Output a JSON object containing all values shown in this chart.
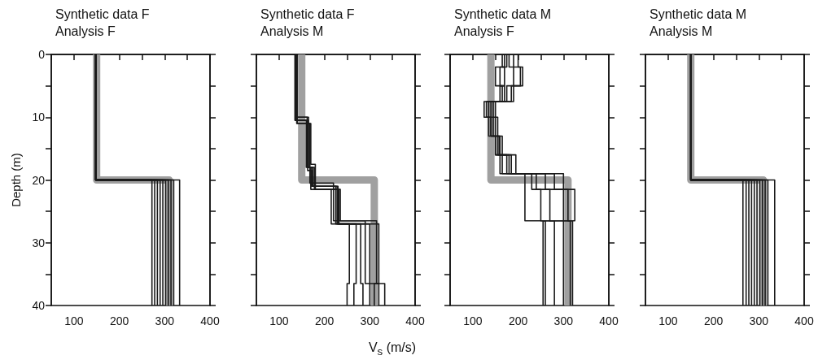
{
  "chart_data": [
    {
      "type": "line",
      "title": "Synthetic data F",
      "subtitle": "Analysis F",
      "ylabel": "Depth (m)",
      "xlim": [
        50,
        400
      ],
      "xticks": [
        {
          "value": 50,
          "label": null
        },
        100,
        {
          "value": 150,
          "label": null
        },
        200,
        {
          "value": 250,
          "label": null
        },
        300,
        {
          "value": 350,
          "label": null
        },
        400
      ],
      "ylim": [
        40,
        0
      ],
      "yticks": [
        0,
        {
          "value": 5,
          "label": null
        },
        10,
        {
          "value": 15,
          "label": null
        },
        20,
        {
          "value": 25,
          "label": null
        },
        30,
        {
          "value": 35,
          "label": null
        },
        40
      ],
      "grid": false,
      "series": [
        {
          "color": "#a0a0a0",
          "x": [
            150,
            150,
            310,
            310
          ],
          "values": [
            0,
            20,
            20,
            40
          ]
        },
        {
          "color": "#1a1a1a",
          "x": [
            148,
            148,
            272,
            272
          ],
          "values": [
            0,
            20,
            20,
            40
          ]
        },
        {
          "color": "#1a1a1a",
          "x": [
            148,
            148,
            278,
            278
          ],
          "values": [
            0,
            20,
            20,
            40
          ]
        },
        {
          "color": "#1a1a1a",
          "x": [
            148,
            148,
            284,
            284
          ],
          "values": [
            0,
            20,
            20,
            40
          ]
        },
        {
          "color": "#1a1a1a",
          "x": [
            148,
            148,
            290,
            290
          ],
          "values": [
            0,
            20,
            20,
            40
          ]
        },
        {
          "color": "#1a1a1a",
          "x": [
            148,
            148,
            296,
            296
          ],
          "values": [
            0,
            20,
            20,
            40
          ]
        },
        {
          "color": "#1a1a1a",
          "x": [
            148,
            148,
            302,
            302
          ],
          "values": [
            0,
            20,
            20,
            40
          ]
        },
        {
          "color": "#1a1a1a",
          "x": [
            148,
            148,
            308,
            308
          ],
          "values": [
            0,
            20,
            20,
            40
          ]
        },
        {
          "color": "#1a1a1a",
          "x": [
            148,
            148,
            314,
            314
          ],
          "values": [
            0,
            20,
            20,
            40
          ]
        },
        {
          "color": "#1a1a1a",
          "x": [
            148,
            148,
            320,
            320
          ],
          "values": [
            0,
            20,
            20,
            40
          ]
        },
        {
          "color": "#1a1a1a",
          "x": [
            148,
            148,
            333,
            333
          ],
          "values": [
            0,
            20,
            20,
            40
          ]
        }
      ]
    },
    {
      "type": "line",
      "title": "Synthetic data F",
      "subtitle": "Analysis M",
      "xlabel": "V$_{s}$ (m/s)",
      "xlim": [
        50,
        400
      ],
      "xticks": [
        {
          "value": 50,
          "label": null
        },
        100,
        {
          "value": 150,
          "label": null
        },
        200,
        {
          "value": 250,
          "label": null
        },
        300,
        {
          "value": 350,
          "label": null
        },
        400
      ],
      "ylim": [
        40,
        0
      ],
      "yticks": [
        0,
        {
          "value": 5,
          "label": null
        },
        10,
        {
          "value": 15,
          "label": null
        },
        20,
        {
          "value": 25,
          "label": null
        },
        30,
        {
          "value": 35,
          "label": null
        },
        40
      ],
      "tick_labels": "x",
      "grid": false,
      "series": [
        {
          "color": "#a0a0a0",
          "x": [
            150,
            150,
            310,
            310
          ],
          "values": [
            0,
            20,
            20,
            40
          ]
        },
        {
          "color": "#1a1a1a",
          "x": [
            135,
            135,
            160,
            160,
            170,
            170,
            215,
            215,
            255,
            255,
            250,
            250
          ],
          "values": [
            0,
            10.5,
            10.5,
            18,
            18,
            21.5,
            21.5,
            27,
            27,
            36.5,
            36.5,
            40
          ]
        },
        {
          "color": "#1a1a1a",
          "x": [
            138,
            138,
            165,
            165,
            175,
            175,
            230,
            230,
            270,
            270,
            265,
            265
          ],
          "values": [
            0,
            10,
            10,
            18,
            18,
            21,
            21,
            27,
            27,
            36.5,
            36.5,
            40
          ]
        },
        {
          "color": "#1a1a1a",
          "x": [
            140,
            140,
            170,
            170,
            180,
            180,
            235,
            235,
            290,
            290,
            300,
            300
          ],
          "values": [
            0,
            11,
            11,
            17.5,
            17.5,
            21.5,
            21.5,
            26.5,
            26.5,
            36.5,
            36.5,
            40
          ]
        },
        {
          "color": "#1a1a1a",
          "x": [
            137,
            137,
            163,
            163,
            172,
            172,
            225,
            225,
            300,
            300,
            320,
            320
          ],
          "values": [
            0,
            10.5,
            10.5,
            18.5,
            18.5,
            21,
            21,
            27,
            27,
            36.5,
            36.5,
            40
          ]
        },
        {
          "color": "#1a1a1a",
          "x": [
            136,
            136,
            162,
            162,
            168,
            168,
            220,
            220,
            315,
            315,
            333,
            333
          ],
          "values": [
            0,
            10,
            10,
            18,
            18,
            20.5,
            20.5,
            26.5,
            26.5,
            36.5,
            36.5,
            40
          ]
        },
        {
          "color": "#1a1a1a",
          "x": [
            139,
            139,
            168,
            168,
            178,
            178,
            232,
            232,
            320,
            320,
            310,
            310
          ],
          "values": [
            0,
            11,
            11,
            18,
            18,
            21.5,
            21.5,
            27,
            27,
            36.5,
            36.5,
            40
          ]
        },
        {
          "color": "#1a1a1a",
          "x": [
            137,
            137,
            164,
            164,
            172,
            172,
            228,
            228,
            280,
            280,
            285,
            285
          ],
          "values": [
            0,
            10.5,
            10.5,
            18,
            18,
            21,
            21,
            27,
            27,
            36.5,
            36.5,
            40
          ]
        }
      ]
    },
    {
      "type": "line",
      "title": "Synthetic data M",
      "subtitle": "Analysis F",
      "xlim": [
        50,
        400
      ],
      "xticks": [
        {
          "value": 50,
          "label": null
        },
        100,
        {
          "value": 150,
          "label": null
        },
        200,
        {
          "value": 250,
          "label": null
        },
        300,
        {
          "value": 350,
          "label": null
        },
        400
      ],
      "ylim": [
        40,
        0
      ],
      "yticks": [
        0,
        {
          "value": 5,
          "label": null
        },
        10,
        {
          "value": 15,
          "label": null
        },
        20,
        {
          "value": 25,
          "label": null
        },
        30,
        {
          "value": 35,
          "label": null
        },
        40
      ],
      "tick_labels": "x",
      "grid": false,
      "series": [
        {
          "color": "#a0a0a0",
          "x": [
            140,
            140,
            310,
            310
          ],
          "values": [
            0,
            20,
            20,
            40
          ]
        },
        {
          "color": "#1a1a1a",
          "x": [
            165,
            165,
            170,
            170,
            160,
            160,
            130,
            130,
            140,
            140,
            150,
            150,
            160,
            160,
            215,
            215,
            215,
            215,
            260,
            260
          ],
          "values": [
            0,
            2,
            2,
            5,
            5,
            7.5,
            7.5,
            10,
            10,
            13,
            13,
            16,
            16,
            19,
            19,
            21.5,
            21.5,
            26.5,
            26.5,
            40
          ]
        },
        {
          "color": "#1a1a1a",
          "x": [
            180,
            180,
            190,
            190,
            175,
            175,
            135,
            135,
            145,
            145,
            155,
            155,
            175,
            175,
            230,
            230,
            250,
            250,
            280,
            280
          ],
          "values": [
            0,
            2,
            2,
            5,
            5,
            7.5,
            7.5,
            10,
            10,
            13,
            13,
            16,
            16,
            19,
            19,
            21.5,
            21.5,
            26.5,
            26.5,
            40
          ]
        },
        {
          "color": "#1a1a1a",
          "x": [
            200,
            200,
            205,
            205,
            185,
            185,
            145,
            145,
            150,
            150,
            160,
            160,
            185,
            185,
            260,
            260,
            270,
            270,
            300,
            300
          ],
          "values": [
            0,
            2,
            2,
            5,
            5,
            7.5,
            7.5,
            10,
            10,
            13,
            13,
            16,
            16,
            19,
            19,
            21.5,
            21.5,
            26.5,
            26.5,
            40
          ]
        },
        {
          "color": "#1a1a1a",
          "x": [
            170,
            170,
            150,
            150,
            165,
            165,
            125,
            125,
            135,
            135,
            150,
            150,
            165,
            165,
            240,
            240,
            300,
            300,
            315,
            315
          ],
          "values": [
            0,
            2,
            2,
            5,
            5,
            7.5,
            7.5,
            10,
            10,
            13,
            13,
            16,
            16,
            19,
            19,
            21.5,
            21.5,
            26.5,
            26.5,
            40
          ]
        },
        {
          "color": "#1a1a1a",
          "x": [
            190,
            190,
            210,
            210,
            190,
            190,
            150,
            150,
            155,
            155,
            165,
            165,
            195,
            195,
            280,
            280,
            310,
            310,
            320,
            320
          ],
          "values": [
            0,
            2,
            2,
            5,
            5,
            7.5,
            7.5,
            10,
            10,
            13,
            13,
            16,
            16,
            19,
            19,
            21.5,
            21.5,
            26.5,
            26.5,
            40
          ]
        },
        {
          "color": "#1a1a1a",
          "x": [
            175,
            175,
            160,
            160,
            170,
            170,
            140,
            140,
            140,
            140,
            158,
            158,
            180,
            180,
            300,
            300,
            325,
            325,
            255,
            255
          ],
          "values": [
            0,
            2,
            2,
            5,
            5,
            7.5,
            7.5,
            10,
            10,
            13,
            13,
            16,
            16,
            19,
            19,
            21.5,
            21.5,
            26.5,
            26.5,
            40
          ]
        }
      ]
    },
    {
      "type": "line",
      "title": "Synthetic data M",
      "subtitle": "Analysis M",
      "xlim": [
        50,
        400
      ],
      "xticks": [
        {
          "value": 50,
          "label": null
        },
        100,
        {
          "value": 150,
          "label": null
        },
        200,
        {
          "value": 250,
          "label": null
        },
        300,
        {
          "value": 350,
          "label": null
        },
        400
      ],
      "ylim": [
        40,
        0
      ],
      "yticks": [
        0,
        {
          "value": 5,
          "label": null
        },
        10,
        {
          "value": 15,
          "label": null
        },
        20,
        {
          "value": 25,
          "label": null
        },
        30,
        {
          "value": 35,
          "label": null
        },
        40
      ],
      "tick_labels": "x",
      "grid": false,
      "series": [
        {
          "color": "#a0a0a0",
          "x": [
            150,
            150,
            310,
            310
          ],
          "values": [
            0,
            20,
            20,
            40
          ]
        },
        {
          "color": "#1a1a1a",
          "x": [
            150,
            150,
            265,
            265
          ],
          "values": [
            0,
            20,
            20,
            40
          ]
        },
        {
          "color": "#1a1a1a",
          "x": [
            150,
            150,
            272,
            272
          ],
          "values": [
            0,
            20,
            20,
            40
          ]
        },
        {
          "color": "#1a1a1a",
          "x": [
            150,
            150,
            278,
            278
          ],
          "values": [
            0,
            20,
            20,
            40
          ]
        },
        {
          "color": "#1a1a1a",
          "x": [
            150,
            150,
            284,
            284
          ],
          "values": [
            0,
            20,
            20,
            40
          ]
        },
        {
          "color": "#1a1a1a",
          "x": [
            150,
            150,
            290,
            290
          ],
          "values": [
            0,
            20,
            20,
            40
          ]
        },
        {
          "color": "#1a1a1a",
          "x": [
            150,
            150,
            296,
            296
          ],
          "values": [
            0,
            20,
            20,
            40
          ]
        },
        {
          "color": "#1a1a1a",
          "x": [
            150,
            150,
            302,
            302
          ],
          "values": [
            0,
            20,
            20,
            40
          ]
        },
        {
          "color": "#1a1a1a",
          "x": [
            150,
            150,
            308,
            308
          ],
          "values": [
            0,
            20,
            20,
            40
          ]
        },
        {
          "color": "#1a1a1a",
          "x": [
            150,
            150,
            314,
            314
          ],
          "values": [
            0,
            20,
            20,
            40
          ]
        },
        {
          "color": "#1a1a1a",
          "x": [
            150,
            150,
            320,
            320
          ],
          "values": [
            0,
            20,
            20,
            40
          ]
        },
        {
          "color": "#1a1a1a",
          "x": [
            150,
            150,
            335,
            335
          ],
          "values": [
            0,
            20,
            20,
            40
          ]
        }
      ]
    }
  ]
}
